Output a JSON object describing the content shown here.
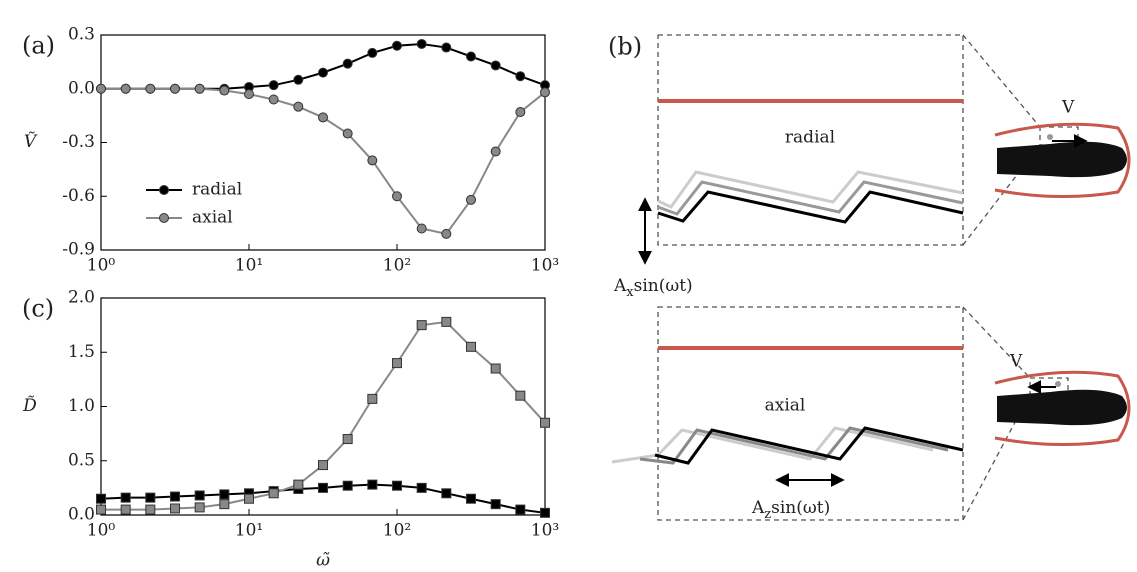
{
  "chart_data": [
    {
      "type": "line",
      "panel_label": "(a)",
      "ylabel": "Ṽ",
      "xscale": "log",
      "legend": "lower left",
      "x": [
        1,
        1.468,
        2.154,
        3.162,
        4.642,
        6.813,
        10,
        14.68,
        21.54,
        31.62,
        46.42,
        68.13,
        100,
        146.8,
        215.4,
        316.2,
        464.2,
        681.3,
        1000
      ],
      "series": [
        {
          "name": "radial",
          "color": "#000000",
          "marker": "circle",
          "values": [
            0,
            0,
            0,
            0,
            0,
            0,
            0.01,
            0.02,
            0.05,
            0.09,
            0.14,
            0.2,
            0.24,
            0.25,
            0.23,
            0.18,
            0.13,
            0.07,
            0.02
          ]
        },
        {
          "name": "axial",
          "color": "#888888",
          "marker": "circle",
          "values": [
            0,
            0,
            0,
            0,
            0,
            -0.01,
            -0.03,
            -0.06,
            -0.1,
            -0.16,
            -0.25,
            -0.4,
            -0.6,
            -0.78,
            -0.81,
            -0.62,
            -0.35,
            -0.13,
            -0.02
          ]
        }
      ],
      "xlim": [
        1,
        1000
      ],
      "xticks": [
        {
          "value": 1,
          "label": "10⁰"
        },
        {
          "value": 10,
          "label": "10¹"
        },
        {
          "value": 100,
          "label": "10²"
        },
        {
          "value": 1000,
          "label": "10³"
        }
      ],
      "ylim": [
        -0.9,
        0.3
      ],
      "yticks": [
        -0.9,
        -0.6,
        -0.3,
        {
          "value": 0,
          "label": "0.0"
        },
        0.3
      ]
    },
    {
      "type": "line",
      "panel_label": "(c)",
      "ylabel": "D̃",
      "xlabel": "ω̃",
      "xscale": "log",
      "x": [
        1,
        1.468,
        2.154,
        3.162,
        4.642,
        6.813,
        10,
        14.68,
        21.54,
        31.62,
        46.42,
        68.13,
        100,
        146.8,
        215.4,
        316.2,
        464.2,
        681.3,
        1000
      ],
      "series": [
        {
          "color": "#000000",
          "marker": "square",
          "values": [
            0.15,
            0.16,
            0.16,
            0.17,
            0.18,
            0.19,
            0.2,
            0.22,
            0.24,
            0.25,
            0.27,
            0.28,
            0.27,
            0.25,
            0.2,
            0.15,
            0.1,
            0.05,
            0.02
          ]
        },
        {
          "color": "#888888",
          "marker": "square",
          "values": [
            0.05,
            0.05,
            0.05,
            0.06,
            0.07,
            0.1,
            0.15,
            0.2,
            0.28,
            0.46,
            0.7,
            1.07,
            1.4,
            1.75,
            1.78,
            1.55,
            1.35,
            1.1,
            0.85
          ]
        }
      ],
      "xlim": [
        1,
        1000
      ],
      "xticks": [
        {
          "value": 1,
          "label": "10⁰"
        },
        {
          "value": 10,
          "label": "10¹"
        },
        {
          "value": 100,
          "label": "10²"
        },
        {
          "value": 1000,
          "label": "10³"
        }
      ],
      "ylim": [
        0,
        2
      ],
      "yticks": [
        {
          "value": 0,
          "label": "0.0"
        },
        0.5,
        {
          "value": 1,
          "label": "1.0"
        },
        1.5,
        {
          "value": 2,
          "label": "2.0"
        }
      ]
    }
  ],
  "diagram": {
    "panel_label": "(b)",
    "top_label": "radial",
    "bottom_label": "axial",
    "top_velocity": "V",
    "bottom_velocity": "V",
    "top_amplitude": {
      "base": "A",
      "sub": "x",
      "rest": "sin(ωt)"
    },
    "bottom_amplitude": {
      "base": "A",
      "sub": "z",
      "rest": "sin(ωt)"
    }
  }
}
